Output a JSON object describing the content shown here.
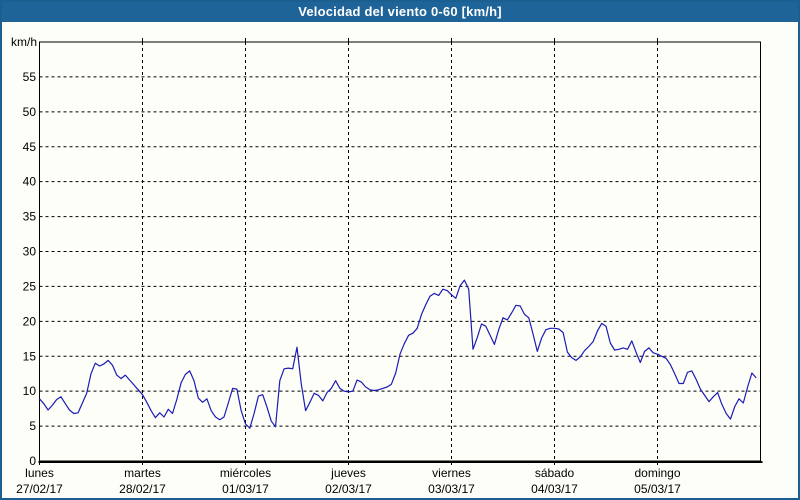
{
  "window": {
    "title": "Velocidad del viento 0-60 [km/h]"
  },
  "colors": {
    "title_bar": "#1f6499",
    "title_text": "#ffffff",
    "frame_border": "#1b5e90",
    "background": "#fdfef8",
    "axis": "#000000",
    "grid": "#000000",
    "label_text": "#000000",
    "series_line": "#1c1cb4"
  },
  "chart_data": {
    "type": "line",
    "title": "Velocidad del viento 0-60 [km/h]",
    "ylabel": "km/h",
    "ylim": [
      0,
      60
    ],
    "yticks": [
      0,
      5,
      10,
      15,
      20,
      25,
      30,
      35,
      40,
      45,
      50,
      55
    ],
    "grid": "dashed",
    "legend": "none",
    "x_axis": {
      "days": [
        {
          "label": "lunes",
          "date": "27/02/17"
        },
        {
          "label": "martes",
          "date": "28/02/17"
        },
        {
          "label": "miércoles",
          "date": "01/03/17"
        },
        {
          "label": "jueves",
          "date": "02/03/17"
        },
        {
          "label": "viernes",
          "date": "03/03/17"
        },
        {
          "label": "sábado",
          "date": "04/03/17"
        },
        {
          "label": "domingo",
          "date": "05/03/17"
        }
      ],
      "points_per_day": 24
    },
    "series": [
      {
        "name": "Velocidad del viento",
        "interval_hours": 1,
        "values": [
          8.9,
          8.2,
          7.3,
          8.0,
          8.8,
          9.2,
          8.2,
          7.3,
          6.8,
          6.9,
          8.3,
          9.7,
          12.5,
          14.0,
          13.6,
          13.9,
          14.4,
          13.7,
          12.3,
          11.8,
          12.3,
          11.6,
          10.9,
          10.2,
          9.5,
          8.4,
          7.2,
          6.2,
          6.9,
          6.3,
          7.4,
          6.8,
          8.8,
          11.2,
          12.4,
          12.9,
          11.5,
          9.0,
          8.4,
          8.9,
          7.2,
          6.3,
          5.9,
          6.3,
          8.3,
          10.4,
          10.3,
          7.2,
          5.3,
          4.7,
          6.8,
          9.3,
          9.5,
          7.7,
          5.7,
          4.9,
          11.5,
          13.2,
          13.3,
          13.2,
          16.3,
          11.0,
          7.2,
          8.4,
          9.7,
          9.4,
          8.6,
          9.8,
          10.4,
          11.5,
          10.4,
          10.0,
          9.9,
          10.0,
          11.6,
          11.3,
          10.6,
          10.2,
          10.1,
          10.2,
          10.4,
          10.6,
          11.0,
          12.6,
          15.3,
          16.8,
          18.0,
          18.3,
          19.0,
          21.0,
          22.4,
          23.6,
          24.0,
          23.7,
          24.6,
          24.4,
          23.8,
          23.3,
          25.1,
          25.9,
          24.6,
          16.0,
          17.7,
          19.6,
          19.3,
          18.0,
          16.7,
          18.8,
          20.5,
          20.2,
          21.2,
          22.3,
          22.2,
          21.0,
          20.5,
          18.2,
          15.7,
          17.6,
          18.8,
          19.0,
          19.0,
          18.9,
          18.4,
          15.6,
          14.8,
          14.4,
          14.9,
          15.8,
          16.4,
          17.1,
          18.6,
          19.7,
          19.3,
          16.9,
          15.9,
          16.0,
          16.2,
          16.0,
          17.2,
          15.6,
          14.1,
          15.7,
          16.2,
          15.5,
          15.3,
          15.0,
          14.7,
          13.8,
          12.5,
          11.1,
          11.1,
          12.7,
          12.9,
          11.7,
          10.3,
          9.4,
          8.5,
          9.2,
          9.8,
          8.1,
          6.8,
          6.0,
          7.8,
          8.9,
          8.3,
          10.6,
          12.6,
          11.9
        ]
      }
    ]
  }
}
